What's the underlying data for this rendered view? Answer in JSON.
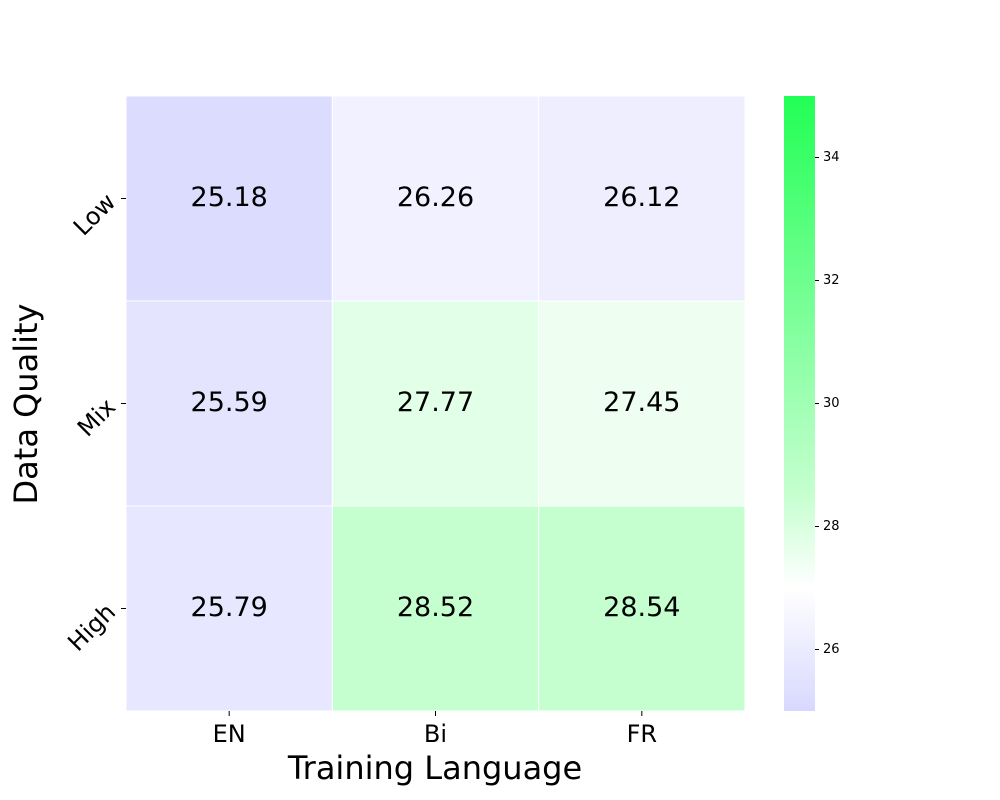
{
  "chart_data": {
    "type": "heatmap",
    "xlabel": "Training Language",
    "ylabel": "Data Quality",
    "x_categories": [
      "EN",
      "Bi",
      "FR"
    ],
    "y_categories": [
      "Low",
      "Mix",
      "High"
    ],
    "values": [
      [
        25.18,
        26.26,
        26.12
      ],
      [
        25.59,
        27.77,
        27.45
      ],
      [
        25.79,
        28.52,
        28.54
      ]
    ],
    "clim": [
      25,
      35
    ],
    "cticks": [
      26,
      28,
      30,
      32,
      34
    ],
    "colorscale": [
      [
        0,
        "#d8d8ff"
      ],
      [
        0.2,
        "#ffffff"
      ],
      [
        0.35,
        "#c6ffd0"
      ],
      [
        1,
        "#22ff55"
      ]
    ],
    "text_color": "#262626"
  }
}
